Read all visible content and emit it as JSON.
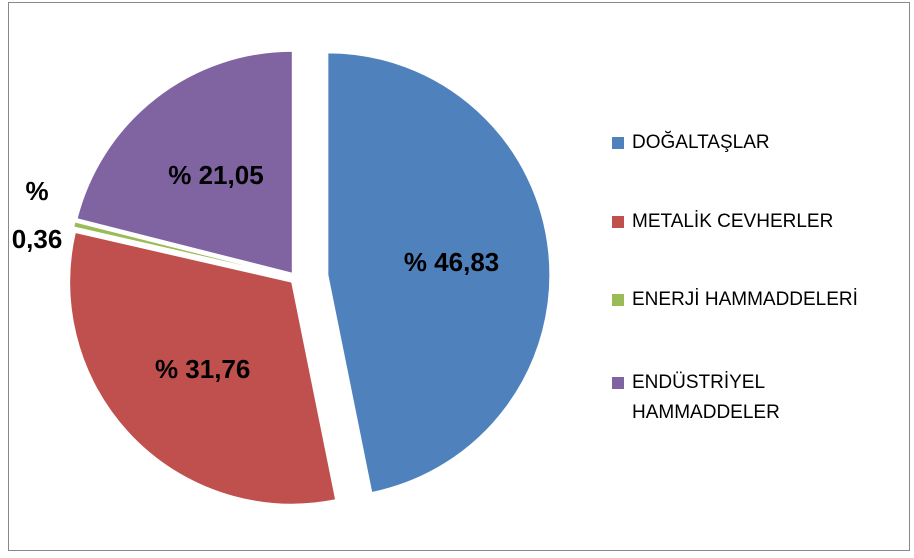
{
  "chart_data": {
    "type": "pie",
    "categories": [
      "DOĞALTAŞLAR",
      "METALİK CEVHERLER",
      "ENERJİ HAMMADDELERİ",
      "ENDÜSTRİYEL HAMMADDELER"
    ],
    "values": [
      46.83,
      31.76,
      0.36,
      21.05
    ],
    "value_labels": [
      "% 46,83",
      "% 31,76",
      "% 0,36",
      "% 21,05"
    ],
    "colors": [
      "#4f81bd",
      "#c0504d",
      "#9bbb59",
      "#8064a2"
    ],
    "legend": "right"
  }
}
